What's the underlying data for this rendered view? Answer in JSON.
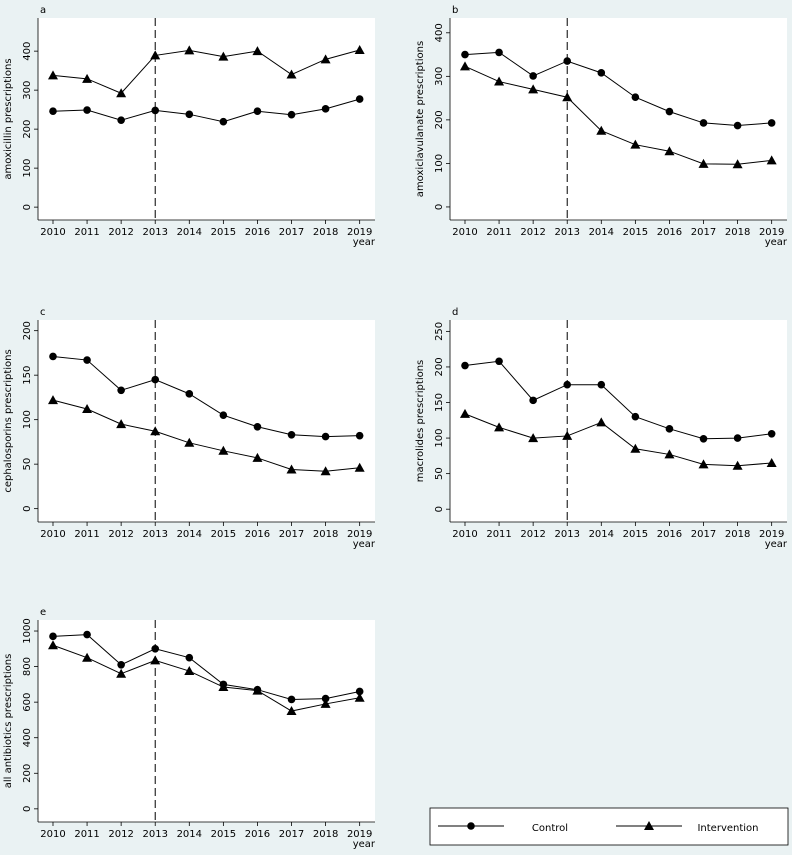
{
  "chart_data": [
    {
      "type": "line",
      "title": "a",
      "ylabel": "amoxicillin prescriptions",
      "xlabel": "year",
      "x": [
        2010,
        2011,
        2012,
        2013,
        2014,
        2015,
        2016,
        2017,
        2018,
        2019
      ],
      "xlim": [
        2009.56,
        2019.45
      ],
      "xticks": [
        2010,
        2011,
        2012,
        2013,
        2014,
        2015,
        2016,
        2017,
        2018,
        2019
      ],
      "ylim": [
        -33,
        485
      ],
      "yticks": [
        0,
        100,
        200,
        300,
        400
      ],
      "reference_x": 2013,
      "series": [
        {
          "name": "Control",
          "color": "#000000",
          "marker": "circle",
          "values": [
            246,
            249,
            223,
            248,
            238,
            219,
            246,
            237,
            252,
            277
          ]
        },
        {
          "name": "Intervention",
          "color": "#000000",
          "marker": "triangle",
          "values": [
            338,
            329,
            292,
            389,
            402,
            386,
            400,
            340,
            379,
            403
          ]
        }
      ]
    },
    {
      "type": "line",
      "title": "b",
      "ylabel": "amoxiclavulanate prescriptions",
      "xlabel": "year",
      "x": [
        2010,
        2011,
        2012,
        2013,
        2014,
        2015,
        2016,
        2017,
        2018,
        2019
      ],
      "xlim": [
        2009.56,
        2019.45
      ],
      "xticks": [
        2010,
        2011,
        2012,
        2013,
        2014,
        2015,
        2016,
        2017,
        2018,
        2019
      ],
      "ylim": [
        -30,
        434
      ],
      "yticks": [
        0,
        100,
        200,
        300,
        400
      ],
      "reference_x": 2013,
      "series": [
        {
          "name": "Control",
          "color": "#000000",
          "marker": "circle",
          "values": [
            350,
            355,
            301,
            335,
            308,
            252,
            219,
            193,
            187,
            193
          ]
        },
        {
          "name": "Intervention",
          "color": "#000000",
          "marker": "triangle",
          "values": [
            323,
            288,
            270,
            252,
            175,
            143,
            128,
            99,
            98,
            107
          ]
        }
      ]
    },
    {
      "type": "line",
      "title": "c",
      "ylabel": "cephalosporins prescriptions",
      "xlabel": "year",
      "x": [
        2010,
        2011,
        2012,
        2013,
        2014,
        2015,
        2016,
        2017,
        2018,
        2019
      ],
      "xlim": [
        2009.56,
        2019.45
      ],
      "xticks": [
        2010,
        2011,
        2012,
        2013,
        2014,
        2015,
        2016,
        2017,
        2018,
        2019
      ],
      "ylim": [
        -15,
        212
      ],
      "yticks": [
        0,
        50,
        100,
        150,
        200
      ],
      "reference_x": 2013,
      "series": [
        {
          "name": "Control",
          "color": "#000000",
          "marker": "circle",
          "values": [
            171,
            167,
            133,
            145,
            129,
            105,
            92,
            83,
            81,
            82
          ]
        },
        {
          "name": "Intervention",
          "color": "#000000",
          "marker": "triangle",
          "values": [
            122,
            112,
            95,
            87,
            74,
            65,
            57,
            44,
            42,
            46
          ]
        }
      ]
    },
    {
      "type": "line",
      "title": "d",
      "ylabel": "macrolides prescriptions",
      "xlabel": "year",
      "x": [
        2010,
        2011,
        2012,
        2013,
        2014,
        2015,
        2016,
        2017,
        2018,
        2019
      ],
      "xlim": [
        2009.56,
        2019.45
      ],
      "xticks": [
        2010,
        2011,
        2012,
        2013,
        2014,
        2015,
        2016,
        2017,
        2018,
        2019
      ],
      "ylim": [
        -18,
        266
      ],
      "yticks": [
        0,
        50,
        100,
        150,
        200,
        250
      ],
      "reference_x": 2013,
      "series": [
        {
          "name": "Control",
          "color": "#000000",
          "marker": "circle",
          "values": [
            202,
            208,
            153,
            175,
            175,
            130,
            113,
            99,
            100,
            106
          ]
        },
        {
          "name": "Intervention",
          "color": "#000000",
          "marker": "triangle",
          "values": [
            134,
            115,
            100,
            103,
            122,
            85,
            77,
            63,
            61,
            65
          ]
        }
      ]
    },
    {
      "type": "line",
      "title": "e",
      "ylabel": "all antibiotics prescriptions",
      "xlabel": "year",
      "x": [
        2010,
        2011,
        2012,
        2013,
        2014,
        2015,
        2016,
        2017,
        2018,
        2019
      ],
      "xlim": [
        2009.56,
        2019.45
      ],
      "xticks": [
        2010,
        2011,
        2012,
        2013,
        2014,
        2015,
        2016,
        2017,
        2018,
        2019
      ],
      "ylim": [
        -74,
        1062
      ],
      "yticks": [
        0,
        200,
        400,
        600,
        800,
        1000
      ],
      "reference_x": 2013,
      "series": [
        {
          "name": "Control",
          "color": "#000000",
          "marker": "circle",
          "values": [
            970,
            980,
            810,
            900,
            850,
            700,
            670,
            615,
            620,
            660
          ]
        },
        {
          "name": "Intervention",
          "color": "#000000",
          "marker": "triangle",
          "values": [
            920,
            850,
            760,
            835,
            775,
            685,
            665,
            550,
            590,
            625
          ]
        }
      ]
    }
  ]
}
